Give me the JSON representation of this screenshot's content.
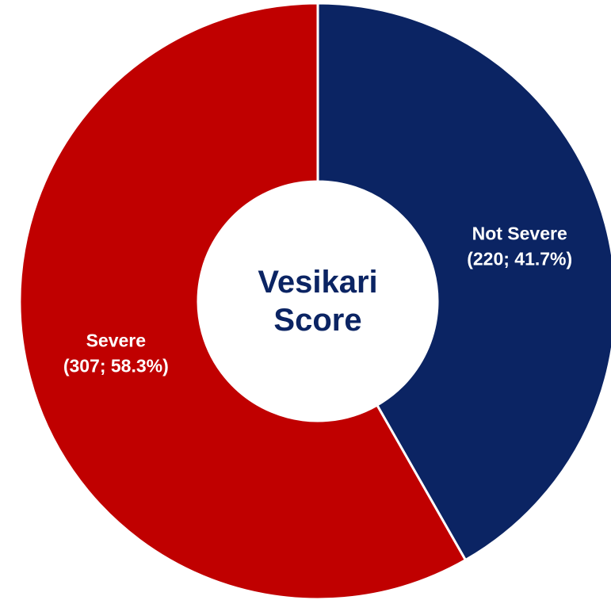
{
  "chart_data": {
    "type": "donut",
    "title": "Vesikari Score",
    "categories": [
      "Not Severe",
      "Severe"
    ],
    "values": [
      220,
      307
    ],
    "value_labels": [
      "(220; 41.7%)",
      "(307; 58.3%)"
    ],
    "colors": [
      "#0b2463",
      "#c00000"
    ]
  }
}
